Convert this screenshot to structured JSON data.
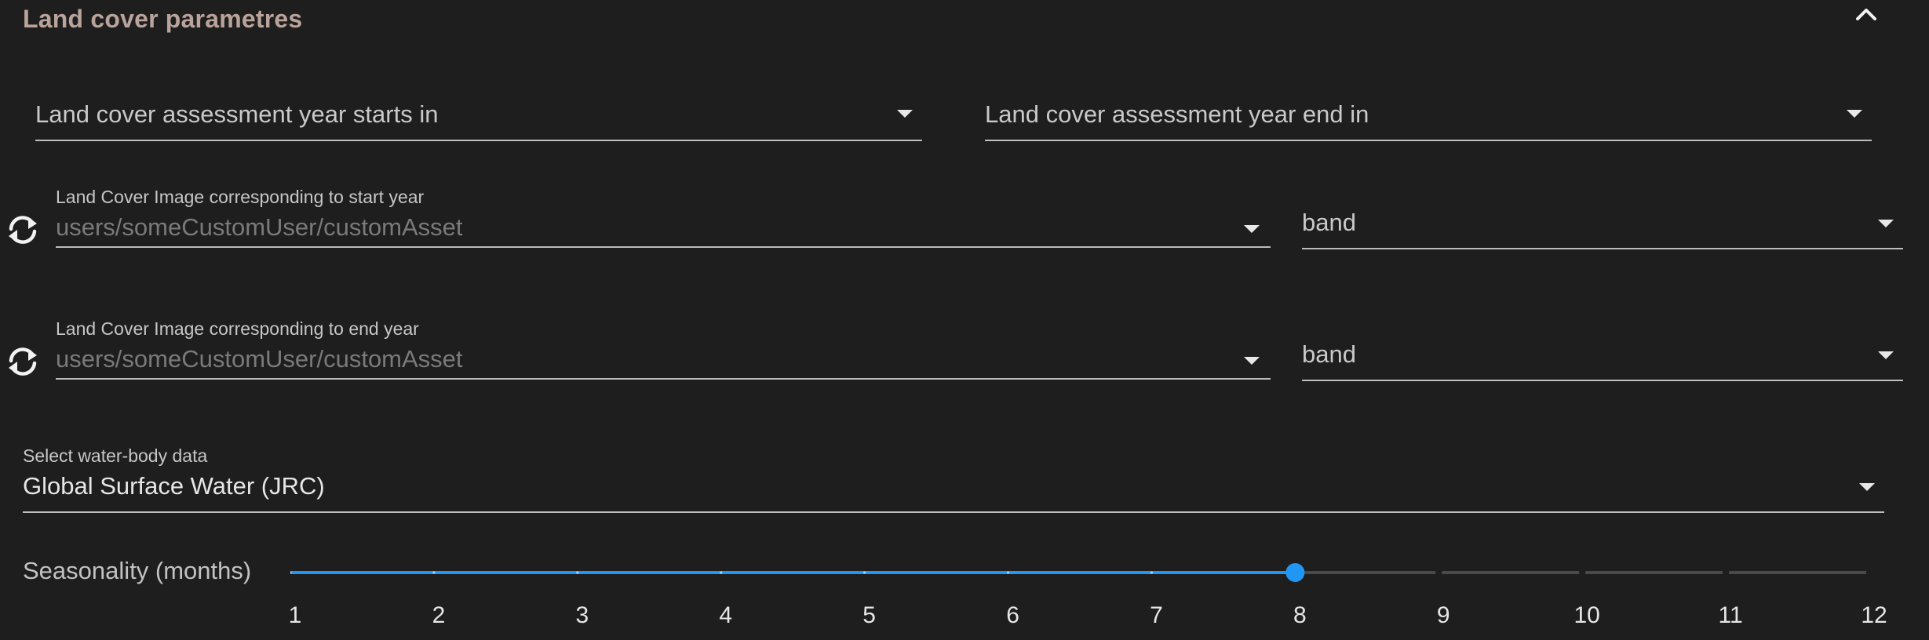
{
  "panel": {
    "title": "Land cover parametres"
  },
  "assessment": {
    "start_year_label": "Land cover assessment year starts in",
    "end_year_label": "Land cover assessment year end in"
  },
  "start_image": {
    "label": "Land Cover Image corresponding to start year",
    "placeholder": "users/someCustomUser/customAsset",
    "band": "band"
  },
  "end_image": {
    "label": "Land Cover Image corresponding to end year",
    "placeholder": "users/someCustomUser/customAsset",
    "band": "band"
  },
  "water_body": {
    "label": "Select water-body data",
    "value": "Global Surface Water (JRC)"
  },
  "seasonality": {
    "label": "Seasonality (months)",
    "min": 1,
    "max": 12,
    "value": 8,
    "ticks": [
      "1",
      "2",
      "3",
      "4",
      "5",
      "6",
      "7",
      "8",
      "9",
      "10",
      "11",
      "12"
    ]
  },
  "icons": {
    "collapse": "chevron-up-icon",
    "refresh": "refresh-icon",
    "dropdown": "caret-down-icon"
  },
  "colors": {
    "background": "#1e1e1e",
    "title": "#b9a39b",
    "accent": "#2196f3",
    "track_inactive": "#4a4a4a"
  }
}
